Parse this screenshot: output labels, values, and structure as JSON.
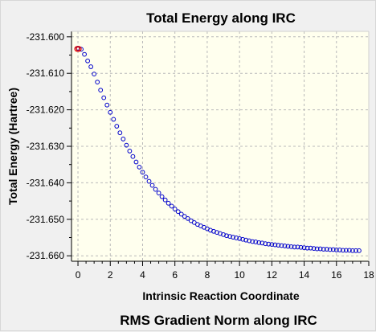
{
  "chart_data": {
    "type": "scatter",
    "title": "Total Energy along IRC",
    "xlabel": "Intrinsic Reaction Coordinate",
    "ylabel": "Total Energy (Hartree)",
    "xlim": [
      -0.4,
      18
    ],
    "ylim": [
      -231.6615,
      -231.5985
    ],
    "x_ticks": [
      0,
      2,
      4,
      6,
      8,
      10,
      12,
      14,
      16,
      18
    ],
    "y_ticks": [
      -231.6,
      -231.61,
      -231.62,
      -231.63,
      -231.64,
      -231.65,
      -231.66
    ],
    "x_tick_labels": [
      "0",
      "2",
      "4",
      "6",
      "8",
      "10",
      "12",
      "14",
      "16",
      "18"
    ],
    "y_tick_labels": [
      "-231.600",
      "-231.610",
      "-231.620",
      "-231.630",
      "-231.640",
      "-231.650",
      "-231.660"
    ],
    "grid": true,
    "plot_background": "#ffffee",
    "point_color": "#0000cc",
    "highlight_color": "#dd0000",
    "highlight_points": [
      [
        -0.05,
        -231.6033
      ],
      [
        0.05,
        -231.6033
      ]
    ],
    "points": [
      [
        0.0,
        -231.6031
      ],
      [
        0.2,
        -231.6034
      ],
      [
        0.4,
        -231.6048
      ],
      [
        0.6,
        -231.6066
      ],
      [
        0.8,
        -231.6082
      ],
      [
        1.0,
        -231.6102
      ],
      [
        1.2,
        -231.6124
      ],
      [
        1.4,
        -231.6146
      ],
      [
        1.6,
        -231.6167
      ],
      [
        1.8,
        -231.6187
      ],
      [
        2.0,
        -231.6207
      ],
      [
        2.2,
        -231.6226
      ],
      [
        2.4,
        -231.6245
      ],
      [
        2.6,
        -231.6263
      ],
      [
        2.8,
        -231.628
      ],
      [
        3.0,
        -231.6297
      ],
      [
        3.2,
        -231.6313
      ],
      [
        3.4,
        -231.6328
      ],
      [
        3.6,
        -231.6343
      ],
      [
        3.8,
        -231.6357
      ],
      [
        4.0,
        -231.6371
      ],
      [
        4.2,
        -231.6384
      ],
      [
        4.4,
        -231.6396
      ],
      [
        4.6,
        -231.6407
      ],
      [
        4.8,
        -231.6418
      ],
      [
        5.0,
        -231.6428
      ],
      [
        5.2,
        -231.6438
      ],
      [
        5.4,
        -231.6447
      ],
      [
        5.6,
        -231.6456
      ],
      [
        5.8,
        -231.6464
      ],
      [
        6.0,
        -231.6472
      ],
      [
        6.2,
        -231.6479
      ],
      [
        6.4,
        -231.6486
      ],
      [
        6.6,
        -231.6492
      ],
      [
        6.8,
        -231.6498
      ],
      [
        7.0,
        -231.6504
      ],
      [
        7.2,
        -231.6509
      ],
      [
        7.4,
        -231.6514
      ],
      [
        7.6,
        -231.6518
      ],
      [
        7.8,
        -231.6522
      ],
      [
        8.0,
        -231.6526
      ],
      [
        8.2,
        -231.653
      ],
      [
        8.4,
        -231.6533
      ],
      [
        8.6,
        -231.6536
      ],
      [
        8.8,
        -231.6539
      ],
      [
        9.0,
        -231.6542
      ],
      [
        9.2,
        -231.6545
      ],
      [
        9.4,
        -231.6547
      ],
      [
        9.6,
        -231.6549
      ],
      [
        9.8,
        -231.6551
      ],
      [
        10.0,
        -231.6553
      ],
      [
        10.2,
        -231.6555
      ],
      [
        10.4,
        -231.6557
      ],
      [
        10.6,
        -231.6559
      ],
      [
        10.8,
        -231.6561
      ],
      [
        11.0,
        -231.6562
      ],
      [
        11.2,
        -231.6564
      ],
      [
        11.4,
        -231.6565
      ],
      [
        11.6,
        -231.6567
      ],
      [
        11.8,
        -231.6568
      ],
      [
        12.0,
        -231.6569
      ],
      [
        12.2,
        -231.657
      ],
      [
        12.4,
        -231.6571
      ],
      [
        12.6,
        -231.6572
      ],
      [
        12.8,
        -231.6573
      ],
      [
        13.0,
        -231.6574
      ],
      [
        13.2,
        -231.6575
      ],
      [
        13.4,
        -231.6576
      ],
      [
        13.6,
        -231.6576
      ],
      [
        13.8,
        -231.6577
      ],
      [
        14.0,
        -231.6578
      ],
      [
        14.2,
        -231.6579
      ],
      [
        14.4,
        -231.6579
      ],
      [
        14.6,
        -231.658
      ],
      [
        14.8,
        -231.6581
      ],
      [
        15.0,
        -231.6581
      ],
      [
        15.2,
        -231.6582
      ],
      [
        15.4,
        -231.6582
      ],
      [
        15.6,
        -231.6583
      ],
      [
        15.8,
        -231.6583
      ],
      [
        16.0,
        -231.6584
      ],
      [
        16.2,
        -231.6584
      ],
      [
        16.4,
        -231.6585
      ],
      [
        16.6,
        -231.6585
      ],
      [
        16.8,
        -231.6585
      ],
      [
        17.0,
        -231.6586
      ],
      [
        17.2,
        -231.6586
      ],
      [
        17.4,
        -231.6586
      ]
    ]
  },
  "next_chart_title": "RMS Gradient Norm along IRC"
}
